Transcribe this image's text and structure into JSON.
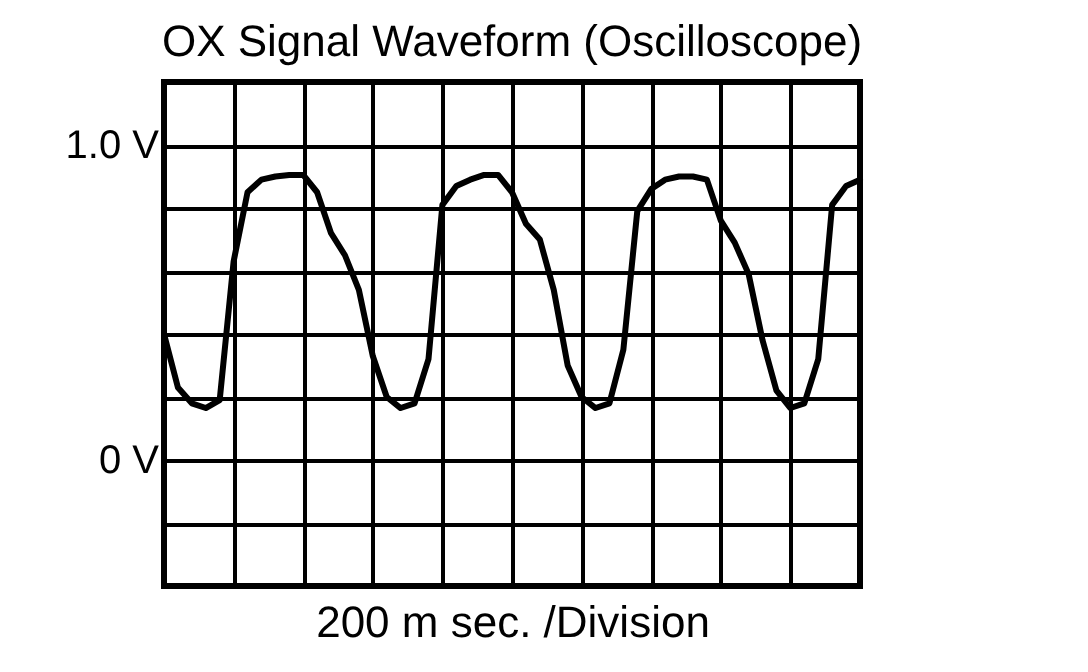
{
  "chart_data": {
    "type": "line",
    "title": "OX Signal Waveform (Oscilloscope)",
    "xlabel": "200 m sec. /Division",
    "categories": [
      null,
      null,
      null,
      null,
      null,
      null,
      null,
      null,
      null,
      null,
      null,
      null,
      null,
      null,
      null,
      null,
      null,
      null,
      null,
      null,
      null,
      null,
      null,
      null,
      null,
      null,
      null,
      null,
      null,
      null,
      null,
      null,
      null,
      null,
      null,
      null,
      null,
      null,
      null,
      null,
      null,
      null,
      null,
      null,
      null,
      null,
      null,
      null,
      null,
      null,
      null
    ],
    "series": [
      {
        "color": "#000000",
        "values": [
          0.4,
          0.23,
          0.18,
          0.165,
          0.19,
          0.63,
          0.85,
          0.89,
          0.9,
          0.905,
          0.905,
          0.85,
          0.72,
          0.65,
          0.54,
          0.33,
          0.2,
          0.165,
          0.18,
          0.32,
          0.81,
          0.87,
          0.89,
          0.905,
          0.905,
          0.85,
          0.75,
          0.7,
          0.54,
          0.3,
          0.2,
          0.165,
          0.18,
          0.35,
          0.79,
          0.86,
          0.89,
          0.9,
          0.9,
          0.89,
          0.76,
          0.69,
          0.59,
          0.38,
          0.22,
          0.165,
          0.18,
          0.32,
          0.81,
          0.87,
          0.89
        ]
      }
    ],
    "ylim": [
      -0.4,
      1.2
    ],
    "yticks": [
      {
        "value": -0.4,
        "label": null
      },
      {
        "value": -0.2,
        "label": null
      },
      {
        "value": 0,
        "label": "0 V"
      },
      {
        "value": 0.2,
        "label": null
      },
      {
        "value": 0.4,
        "label": null
      },
      {
        "value": 0.6,
        "label": null
      },
      {
        "value": 0.8,
        "label": null
      },
      {
        "value": 1.0,
        "label": "1.0 V"
      },
      {
        "value": 1.2,
        "label": null
      }
    ],
    "grid": true,
    "tick_labels": "y",
    "marker": "none",
    "line_style": "solid"
  }
}
